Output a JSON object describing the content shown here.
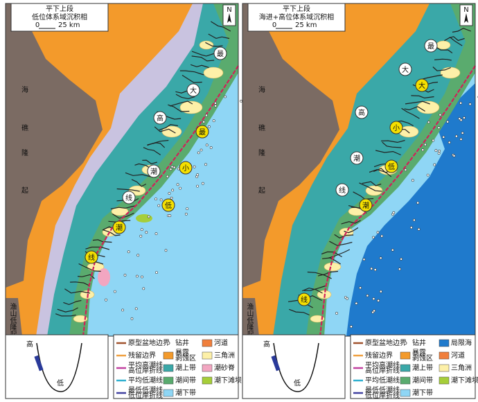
{
  "panels": [
    {
      "title": [
        "平下上段",
        "低位体系域沉积相"
      ],
      "scale": [
        "0",
        "25 km"
      ],
      "north": "N",
      "region_labels": [
        "海",
        "礁",
        "隆",
        "起"
      ],
      "low_uplift": "渔山低隆起",
      "high_line_labels": [
        "最",
        "大",
        "高",
        "潮",
        "线"
      ],
      "low_line_labels": [
        "最",
        "小",
        "低",
        "潮",
        "线"
      ],
      "curve_labels": [
        "高",
        "低"
      ],
      "legend": [
        {
          "label": [
            "原型盆地边界"
          ],
          "color": "#a0522d",
          "style": "line"
        },
        {
          "label": [
            "钻井"
          ],
          "color": "#555555",
          "style": "dot"
        },
        {
          "label": [
            "河道"
          ],
          "color": "#f07f3c",
          "style": "fill"
        },
        {
          "label": [
            "残留边界"
          ],
          "color": "#f0a040",
          "style": "line"
        },
        {
          "label": [
            "暴露",
            "剥蚀区"
          ],
          "color": "#f39a2b",
          "style": "fill"
        },
        {
          "label": [
            "三角洲"
          ],
          "color": "#fdf0a8",
          "style": "fill"
        },
        {
          "label": [
            "平均高潮线",
            "高位岸折线"
          ],
          "color": "#c040a0",
          "style": "line"
        },
        {
          "label": [
            "潮上带"
          ],
          "color": "#3aa8a8",
          "style": "fill"
        },
        {
          "label": [
            "潮砂脊"
          ],
          "color": "#f2a6c1",
          "style": "fill"
        },
        {
          "label": [
            "平均低潮线"
          ],
          "color": "#30b0d0",
          "style": "line"
        },
        {
          "label": [
            "潮间带"
          ],
          "color": "#5aab6e",
          "style": "fill"
        },
        {
          "label": [
            "潮下滩坝"
          ],
          "color": "#a6ce39",
          "style": "fill"
        },
        {
          "label": [
            "最低低潮线",
            "低位岸折线"
          ],
          "color": "#4040a0",
          "style": "line"
        },
        {
          "label": [
            "潮下带"
          ],
          "color": "#8fd6f5",
          "style": "fill"
        }
      ]
    },
    {
      "title": [
        "平下上段",
        "海进+高位体系域沉积相"
      ],
      "scale": [
        "0",
        "25 km"
      ],
      "north": "N",
      "region_labels": [
        "海",
        "礁",
        "隆",
        "起"
      ],
      "low_uplift": "渔山低隆起",
      "high_line_labels": [
        "最",
        "大",
        "高",
        "潮",
        "线"
      ],
      "low_line_labels": [
        "大",
        "小",
        "低",
        "潮",
        "线"
      ],
      "curve_labels": [
        "高",
        "低"
      ],
      "legend": [
        {
          "label": [
            "原型盆地边界"
          ],
          "color": "#a0522d",
          "style": "line"
        },
        {
          "label": [
            "钻井"
          ],
          "color": "#555555",
          "style": "dot"
        },
        {
          "label": [
            "局限海"
          ],
          "color": "#1f7acc",
          "style": "fill"
        },
        {
          "label": [
            "残留边界"
          ],
          "color": "#f0a040",
          "style": "line"
        },
        {
          "label": [
            "暴露",
            "剥蚀区"
          ],
          "color": "#f39a2b",
          "style": "fill"
        },
        {
          "label": [
            "河道"
          ],
          "color": "#f07f3c",
          "style": "fill"
        },
        {
          "label": [
            "平均高潮线",
            "高位岸折线"
          ],
          "color": "#c040a0",
          "style": "line"
        },
        {
          "label": [
            "潮上带"
          ],
          "color": "#3aa8a8",
          "style": "fill"
        },
        {
          "label": [
            "三角洲"
          ],
          "color": "#fdf0a8",
          "style": "fill"
        },
        {
          "label": [
            "平均低潮线"
          ],
          "color": "#30b0d0",
          "style": "line"
        },
        {
          "label": [
            "潮间带"
          ],
          "color": "#5aab6e",
          "style": "fill"
        },
        {
          "label": [
            "潮下滩坝"
          ],
          "color": "#a6ce39",
          "style": "fill"
        },
        {
          "label": [
            "最低低潮线",
            "低位岸折线"
          ],
          "color": "#4040a0",
          "style": "line"
        },
        {
          "label": [
            "潮下带"
          ],
          "color": "#8fd6f5",
          "style": "fill"
        }
      ]
    }
  ]
}
